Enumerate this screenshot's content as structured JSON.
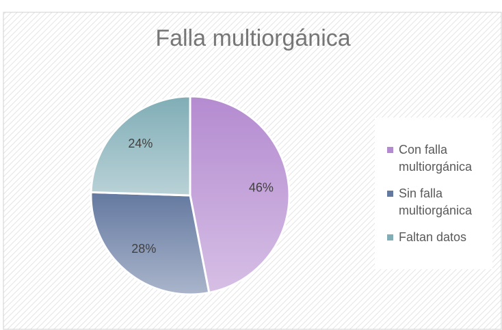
{
  "chart_data": {
    "type": "pie",
    "title": "Falla multiorgánica",
    "categories": [
      "Con falla multiorgánica",
      "Sin falla multiorgánica",
      "Faltan datos"
    ],
    "values": [
      46,
      28,
      24
    ],
    "value_labels": [
      "46%",
      "28%",
      "24%"
    ],
    "colors": [
      "#b48bd0",
      "#6479a0",
      "#80adb6"
    ],
    "legend": "right"
  }
}
